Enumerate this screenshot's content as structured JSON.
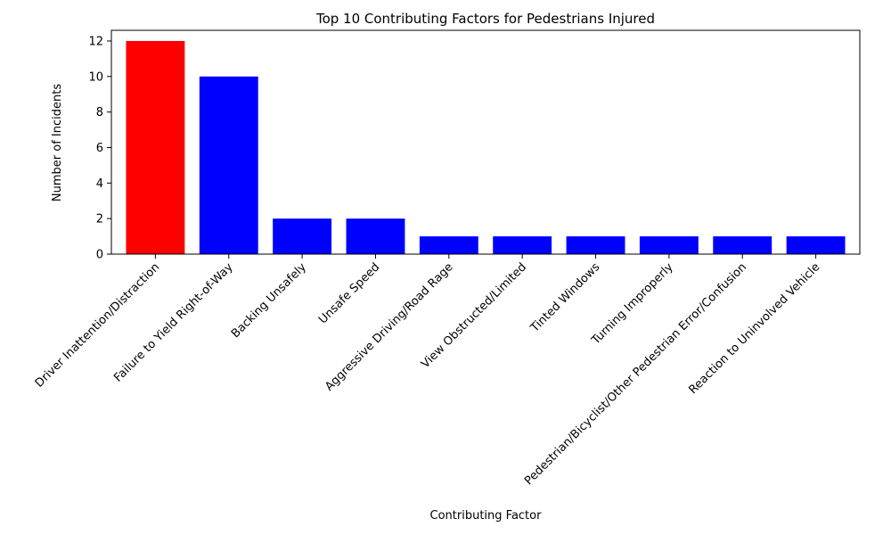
{
  "chart_data": {
    "type": "bar",
    "title": "Top 10 Contributing Factors for Pedestrians Injured",
    "xlabel": "Contributing Factor",
    "ylabel": "Number of Incidents",
    "ylim": [
      0,
      12.6
    ],
    "yticks": [
      0,
      2,
      4,
      6,
      8,
      10,
      12
    ],
    "grid": false,
    "categories": [
      "Driver Inattention/Distraction",
      "Failure to Yield Right-of-Way",
      "Backing Unsafely",
      "Unsafe Speed",
      "Aggressive Driving/Road Rage",
      "View Obstructed/Limited",
      "Tinted Windows",
      "Turning Improperly",
      "Pedestrian/Bicyclist/Other Pedestrian Error/Confusion",
      "Reaction to Uninvolved Vehicle"
    ],
    "values": [
      12,
      10,
      2,
      2,
      1,
      1,
      1,
      1,
      1,
      1
    ],
    "colors": [
      "#ff0000",
      "#0000ff",
      "#0000ff",
      "#0000ff",
      "#0000ff",
      "#0000ff",
      "#0000ff",
      "#0000ff",
      "#0000ff",
      "#0000ff"
    ]
  }
}
